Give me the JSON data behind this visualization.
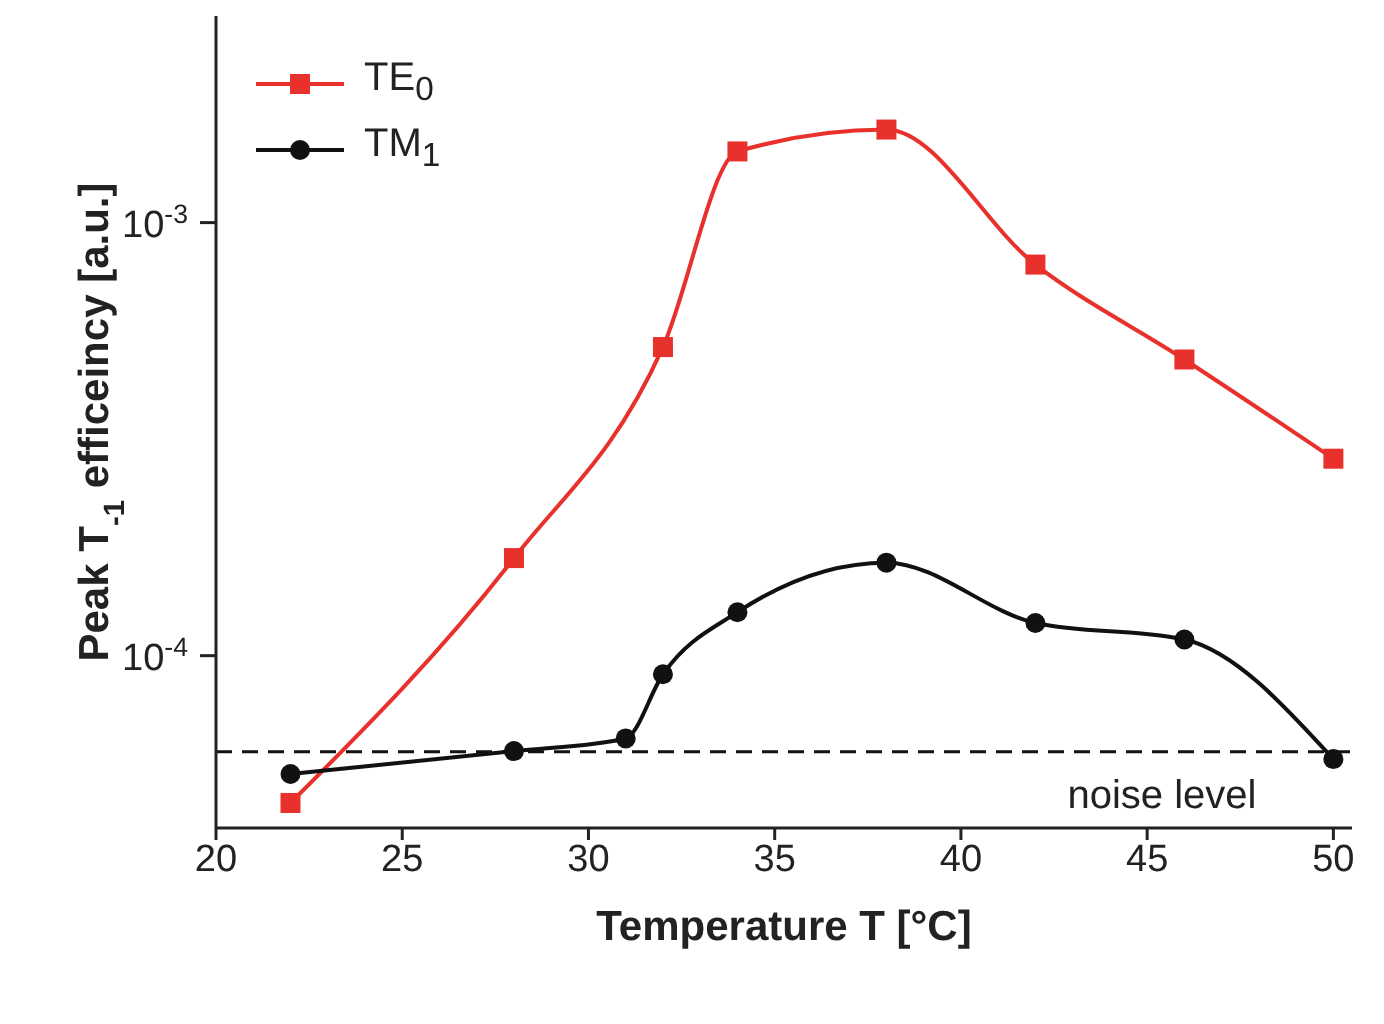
{
  "chart_data": {
    "type": "line",
    "xlabel": "Temperature T [°C]",
    "ylabel": "Peak T$_{-1}$ efficeincy [a.u.]",
    "log": "y",
    "xlim": [
      20,
      50.5
    ],
    "xticks": [
      20,
      25,
      30,
      35,
      40,
      45,
      50
    ],
    "ylim": [
      4e-05,
      0.003
    ],
    "yticks": [
      {
        "value": 0.0001,
        "label": "10$^{-4}$"
      },
      {
        "value": 0.001,
        "label": "10$^{-3}$"
      }
    ],
    "legend": "top left",
    "line_style": "solid",
    "series": [
      {
        "name": "TE$_{0}$",
        "color": "#e8312c",
        "marker": "square",
        "x": [
          22,
          28,
          32,
          34,
          38,
          42,
          46,
          50
        ],
        "values": [
          4.57e-05,
          0.000168,
          0.000516,
          0.00146,
          0.00164,
          0.0008,
          0.000483,
          0.000285
        ]
      },
      {
        "name": "TM$_{1}$",
        "color": "#111111",
        "marker": "circle",
        "x": [
          22,
          28,
          31,
          32,
          34,
          38,
          42,
          46,
          50
        ],
        "values": [
          5.33e-05,
          6.02e-05,
          6.44e-05,
          9.06e-05,
          0.000126,
          0.000164,
          0.000119,
          0.000109,
          5.77e-05
        ]
      }
    ],
    "ref_lines": [
      {
        "axis": "y",
        "value": 6e-05,
        "label": "noise level",
        "color": "#111111",
        "line_style": "dashed"
      }
    ]
  }
}
